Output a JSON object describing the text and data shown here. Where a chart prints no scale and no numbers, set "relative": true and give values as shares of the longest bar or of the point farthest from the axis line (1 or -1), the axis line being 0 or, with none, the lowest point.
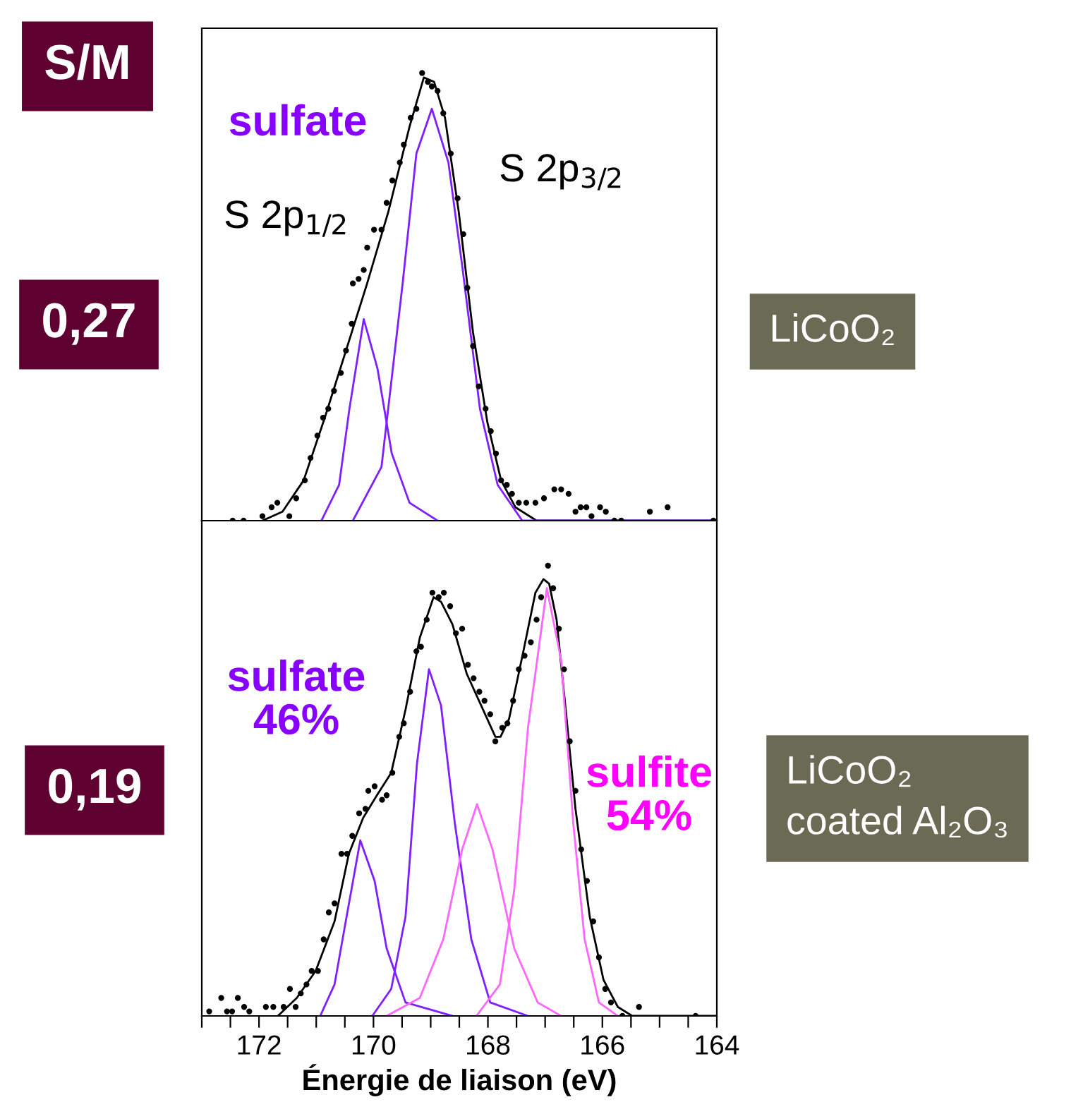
{
  "chart_data": [
    {
      "type": "line",
      "relative": true,
      "xlim": [
        173,
        164
      ],
      "tick_labels": false,
      "annotations": [
        "S/M",
        "0,27",
        "LiCoO₂",
        "sulfate",
        "S 2p$_{1/2}$",
        "S 2p$_{3/2}$"
      ],
      "series": [
        {
          "type": "scatter",
          "marker": "circle",
          "color": "#000000",
          "x": [
            172.46,
            172.27,
            171.94,
            171.78,
            171.68,
            171.47,
            171.35,
            171.2,
            171.1,
            170.98,
            170.88,
            170.79,
            170.69,
            170.57,
            170.48,
            170.38,
            170.36,
            170.26,
            170.17,
            170.11,
            169.99,
            169.86,
            169.77,
            169.67,
            169.54,
            169.47,
            169.35,
            169.25,
            169.15,
            169.05,
            168.98,
            168.88,
            168.78,
            168.65,
            168.53,
            168.43,
            168.36,
            168.26,
            168.16,
            168.04,
            167.95,
            167.86,
            167.77,
            167.67,
            167.58,
            167.46,
            167.33,
            167.17,
            167.02,
            166.84,
            166.72,
            166.59,
            166.47,
            166.38,
            166.28,
            166.19,
            166.04,
            165.94,
            165.79,
            165.67,
            165.17,
            164.86,
            164.06
          ],
          "values": [
            0,
            0,
            0.01,
            0.03,
            0.04,
            0.01,
            0.05,
            0.09,
            0.14,
            0.19,
            0.23,
            0.25,
            0.29,
            0.33,
            0.38,
            0.44,
            0.53,
            0.54,
            0.56,
            0.61,
            0.65,
            0.65,
            0.71,
            0.76,
            0.8,
            0.84,
            0.9,
            0.92,
            1.0,
            0.98,
            0.97,
            0.96,
            0.91,
            0.82,
            0.72,
            0.64,
            0.52,
            0.39,
            0.3,
            0.25,
            0.2,
            0.15,
            0.09,
            0.08,
            0.06,
            0.04,
            0.04,
            0.04,
            0.05,
            0.07,
            0.07,
            0.06,
            0.02,
            0.03,
            0.03,
            0.01,
            0.03,
            0.02,
            0,
            0,
            0.02,
            0.03,
            0
          ]
        },
        {
          "color": "#000000",
          "x": [
            171.94,
            171.59,
            171.22,
            170.85,
            170.48,
            170.11,
            169.74,
            169.37,
            169.12,
            168.94,
            168.75,
            168.51,
            168.26,
            168.01,
            167.77,
            167.52,
            167.15,
            166.04,
            164.0
          ],
          "values": [
            0,
            0.02,
            0.09,
            0.23,
            0.38,
            0.53,
            0.69,
            0.88,
            0.99,
            0.98,
            0.9,
            0.69,
            0.42,
            0.22,
            0.09,
            0.03,
            0,
            0,
            0
          ]
        },
        {
          "color": "#7f1fff",
          "x": [
            170.91,
            170.6,
            170.42,
            170.17,
            169.93,
            169.68,
            169.37,
            168.88
          ],
          "values": [
            0,
            0.08,
            0.25,
            0.45,
            0.34,
            0.15,
            0.04,
            0
          ]
        },
        {
          "color": "#7f1fff",
          "x": [
            170.36,
            169.86,
            169.49,
            169.25,
            168.98,
            168.69,
            168.44,
            168.14,
            167.83,
            167.4,
            164.0
          ],
          "values": [
            0,
            0.12,
            0.53,
            0.82,
            0.92,
            0.8,
            0.56,
            0.25,
            0.08,
            0,
            0
          ]
        }
      ]
    },
    {
      "type": "line",
      "relative": true,
      "xlim": [
        173,
        164
      ],
      "tick_labels": "x",
      "xlabel": "Énergie de liaison (eV)",
      "xticks": [
        {
          "value": 173,
          "label": null
        },
        {
          "value": 172.5,
          "label": null
        },
        172,
        {
          "value": 171.5,
          "label": null
        },
        {
          "value": 171,
          "label": null
        },
        {
          "value": 170.5,
          "label": null
        },
        170,
        {
          "value": 169.5,
          "label": null
        },
        {
          "value": 169,
          "label": null
        },
        {
          "value": 168.5,
          "label": null
        },
        168,
        {
          "value": 167.5,
          "label": null
        },
        {
          "value": 167,
          "label": null
        },
        {
          "value": 166.5,
          "label": null
        },
        166,
        {
          "value": 165.5,
          "label": null
        },
        {
          "value": 165,
          "label": null
        },
        {
          "value": 164.5,
          "label": null
        },
        164
      ],
      "annotations": [
        "0,19",
        "LiCoO₂\ncoated Al₂O₃",
        "sulfate\n46%",
        "sulfite\n54%"
      ],
      "series": [
        {
          "type": "scatter",
          "marker": "circle",
          "color": "#000000",
          "x": [
            172.87,
            172.66,
            172.56,
            172.47,
            172.37,
            172.26,
            172.17,
            171.88,
            171.75,
            171.57,
            171.46,
            171.36,
            171.27,
            171.17,
            171.08,
            170.97,
            170.87,
            170.78,
            170.68,
            170.56,
            170.46,
            170.37,
            170.25,
            170.14,
            170.09,
            169.98,
            169.85,
            169.77,
            169.67,
            169.55,
            169.47,
            169.36,
            169.25,
            169.17,
            169.07,
            168.97,
            168.86,
            168.77,
            168.66,
            168.56,
            168.45,
            168.35,
            168.25,
            168.15,
            168.06,
            167.96,
            167.87,
            167.75,
            167.66,
            167.56,
            167.46,
            167.36,
            167.25,
            167.15,
            167.07,
            166.95,
            166.86,
            166.76,
            166.67,
            166.57,
            166.47,
            166.37,
            166.27,
            166.16,
            166.06,
            165.95,
            165.85,
            165.65,
            165.36,
            164.37
          ],
          "values": [
            0.01,
            0.04,
            0.01,
            0.01,
            0.04,
            0.02,
            0.01,
            0.02,
            0.02,
            0.02,
            0.06,
            0.02,
            0.05,
            0.07,
            0.1,
            0.1,
            0.17,
            0.23,
            0.25,
            0.36,
            0.36,
            0.4,
            0.45,
            0.46,
            0.5,
            0.51,
            0.48,
            0.49,
            0.54,
            0.62,
            0.65,
            0.72,
            0.81,
            0.82,
            0.88,
            0.94,
            0.93,
            0.94,
            0.91,
            0.85,
            0.86,
            0.78,
            0.75,
            0.72,
            0.7,
            0.67,
            0.61,
            0.64,
            0.65,
            0.7,
            0.77,
            0.8,
            0.83,
            0.88,
            0.93,
            1.0,
            0.95,
            0.86,
            0.77,
            0.61,
            0.5,
            0.37,
            0.3,
            0.21,
            0.13,
            0.06,
            0.03,
            0,
            0.02,
            0
          ]
        },
        {
          "color": "#000000",
          "x": [
            171.67,
            171.34,
            171.01,
            170.68,
            170.43,
            170.18,
            169.94,
            169.69,
            169.44,
            169.19,
            168.95,
            168.82,
            168.62,
            168.37,
            168.12,
            167.87,
            167.78,
            167.63,
            167.38,
            167.17,
            167.03,
            166.93,
            166.8,
            166.64,
            166.47,
            166.22,
            165.98,
            165.73,
            165.48,
            164.0
          ],
          "values": [
            0,
            0.04,
            0.1,
            0.21,
            0.36,
            0.44,
            0.49,
            0.54,
            0.68,
            0.84,
            0.93,
            0.92,
            0.87,
            0.76,
            0.69,
            0.62,
            0.62,
            0.66,
            0.81,
            0.94,
            0.97,
            0.96,
            0.88,
            0.68,
            0.46,
            0.22,
            0.08,
            0.02,
            0,
            0
          ]
        },
        {
          "color": "#7f1fff",
          "x": [
            170.93,
            170.68,
            170.47,
            170.23,
            169.98,
            169.77,
            169.44,
            168.62
          ],
          "values": [
            0,
            0.07,
            0.22,
            0.39,
            0.3,
            0.15,
            0.03,
            0
          ]
        },
        {
          "color": "#7f1fff",
          "x": [
            170.02,
            169.69,
            169.44,
            169.24,
            169.03,
            168.82,
            168.58,
            168.29,
            167.96,
            167.3
          ],
          "values": [
            0,
            0.06,
            0.22,
            0.56,
            0.77,
            0.69,
            0.43,
            0.17,
            0.03,
            0
          ]
        },
        {
          "color": "#ff66ff",
          "x": [
            169.77,
            169.19,
            168.78,
            168.45,
            168.19,
            167.92,
            167.54,
            167.13,
            166.72
          ],
          "values": [
            0,
            0.04,
            0.17,
            0.37,
            0.47,
            0.37,
            0.15,
            0.03,
            0
          ]
        },
        {
          "color": "#ff66ff",
          "x": [
            168.2,
            167.79,
            167.54,
            167.3,
            166.97,
            166.72,
            166.51,
            166.31,
            166.06,
            165.73
          ],
          "values": [
            0,
            0.07,
            0.28,
            0.64,
            0.95,
            0.79,
            0.43,
            0.17,
            0.03,
            0
          ]
        }
      ]
    }
  ]
}
